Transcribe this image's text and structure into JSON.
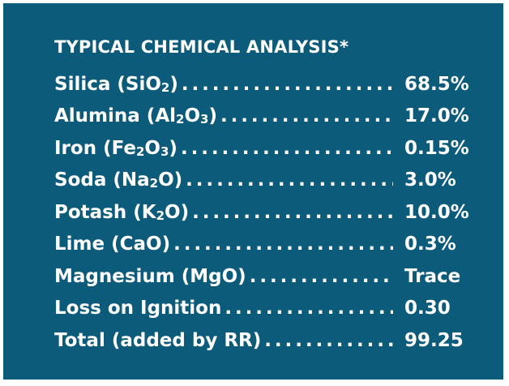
{
  "title": "TYPICAL CHEMICAL ANALYSIS*",
  "rows": [
    {
      "name_pre": "Silica (SiO",
      "sub1": "2",
      "name_mid": ")",
      "sub2": "",
      "name_post": "",
      "value": "68.5%"
    },
    {
      "name_pre": "Alumina (Al",
      "sub1": "2",
      "name_mid": "O",
      "sub2": "3",
      "name_post": ")",
      "value": "17.0%"
    },
    {
      "name_pre": "Iron (Fe",
      "sub1": "2",
      "name_mid": "O",
      "sub2": "3",
      "name_post": ")",
      "value": "0.15%"
    },
    {
      "name_pre": "Soda (Na",
      "sub1": "2",
      "name_mid": "O)",
      "sub2": "",
      "name_post": "",
      "value": "3.0%"
    },
    {
      "name_pre": "Potash (K",
      "sub1": "2",
      "name_mid": "O)",
      "sub2": "",
      "name_post": "",
      "value": "10.0%"
    },
    {
      "name_pre": "Lime (CaO)",
      "sub1": "",
      "name_mid": "",
      "sub2": "",
      "name_post": "",
      "value": "0.3%"
    },
    {
      "name_pre": "Magnesium (MgO)",
      "sub1": "",
      "name_mid": "",
      "sub2": "",
      "name_post": "",
      "value": "Trace"
    },
    {
      "name_pre": "Loss on Ignition",
      "sub1": "",
      "name_mid": "",
      "sub2": "",
      "name_post": "",
      "value": "0.30"
    },
    {
      "name_pre": "Total (added by RR)",
      "sub1": "",
      "name_mid": "",
      "sub2": "",
      "name_post": "",
      "value": "99.25"
    }
  ],
  "colors": {
    "panel_background": "#0d5b7a",
    "text": "#ffffff"
  }
}
